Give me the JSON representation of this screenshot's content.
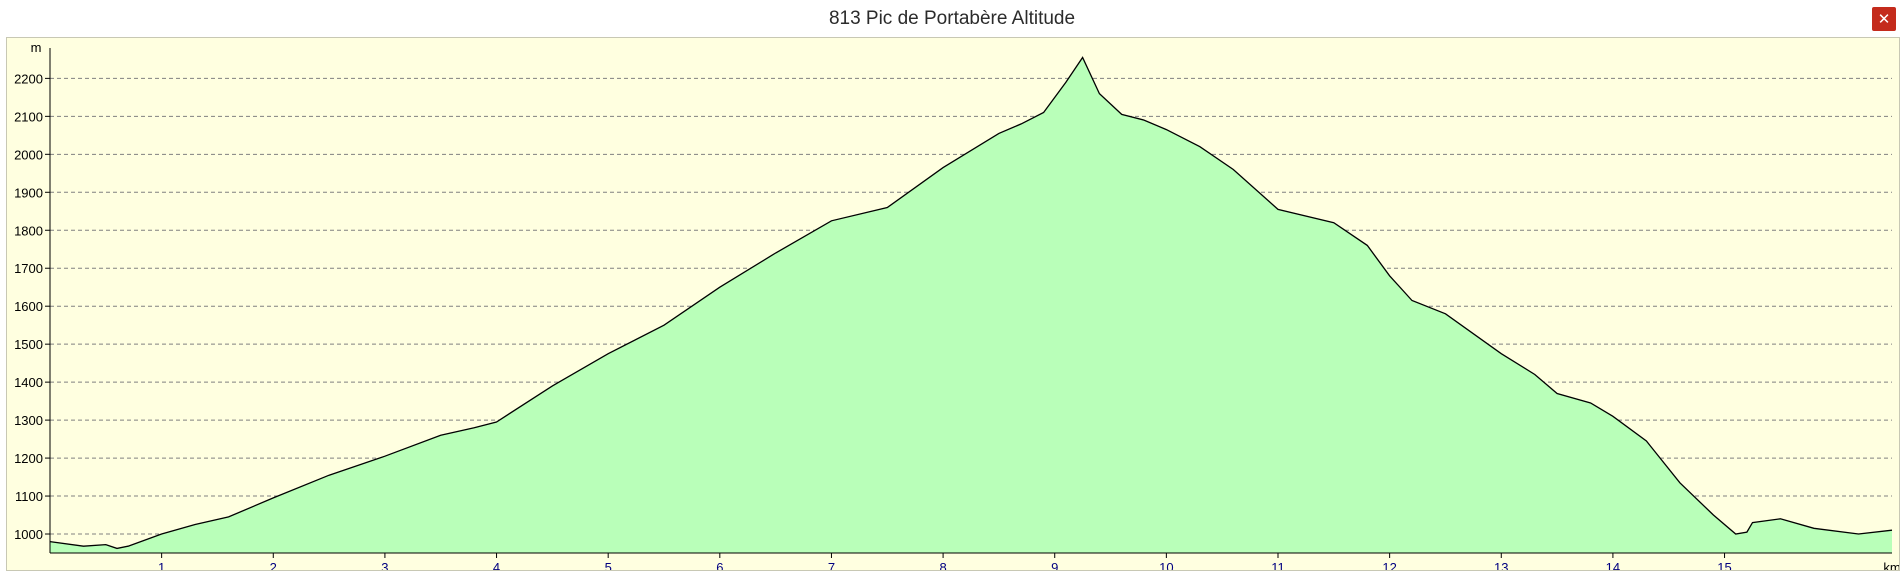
{
  "window": {
    "title": "813 Pic de Portabère Altitude",
    "close_icon": "close-icon",
    "close_glyph": "✕",
    "close_color": "#c42b1c"
  },
  "colors": {
    "background": "#ffffe0",
    "fill": "#b9ffb9",
    "line": "#000000",
    "grid": "#808080",
    "x_tick_text": "#000080"
  },
  "chart_data": {
    "type": "area",
    "title": "813 Pic de Portabère Altitude",
    "xlabel": "km",
    "ylabel": "m",
    "xlim": [
      0,
      16.5
    ],
    "ylim": [
      950,
      2280
    ],
    "x_ticks": [
      1,
      2,
      3,
      4,
      5,
      6,
      7,
      8,
      9,
      10,
      11,
      12,
      13,
      14,
      15
    ],
    "y_ticks": [
      1000,
      1100,
      1200,
      1300,
      1400,
      1500,
      1600,
      1700,
      1800,
      1900,
      2000,
      2100,
      2200
    ],
    "grid": "horizontal-dashed",
    "legend": "none",
    "series": [
      {
        "x": [
          0,
          0.3,
          0.5,
          0.6,
          0.7,
          1.0,
          1.3,
          1.6,
          2.0,
          2.5,
          3.0,
          3.5,
          3.8,
          4.0,
          4.5,
          5.0,
          5.5,
          6.0,
          6.5,
          7.0,
          7.5,
          8.0,
          8.5,
          8.7,
          8.9,
          9.1,
          9.25,
          9.4,
          9.6,
          9.8,
          10.0,
          10.3,
          10.6,
          11.0,
          11.5,
          11.8,
          12.0,
          12.2,
          12.5,
          13.0,
          13.3,
          13.5,
          13.8,
          14.0,
          14.3,
          14.6,
          14.9,
          15.1,
          15.2,
          15.25,
          15.5,
          15.8,
          16.2,
          16.5
        ],
        "y": [
          980,
          968,
          972,
          962,
          968,
          1000,
          1025,
          1045,
          1095,
          1155,
          1205,
          1260,
          1280,
          1295,
          1390,
          1475,
          1550,
          1650,
          1740,
          1825,
          1860,
          1965,
          2055,
          2080,
          2110,
          2190,
          2255,
          2160,
          2105,
          2090,
          2065,
          2020,
          1960,
          1855,
          1820,
          1760,
          1680,
          1615,
          1580,
          1475,
          1420,
          1370,
          1345,
          1310,
          1245,
          1135,
          1050,
          1000,
          1005,
          1030,
          1040,
          1015,
          1000,
          1010
        ]
      }
    ]
  }
}
